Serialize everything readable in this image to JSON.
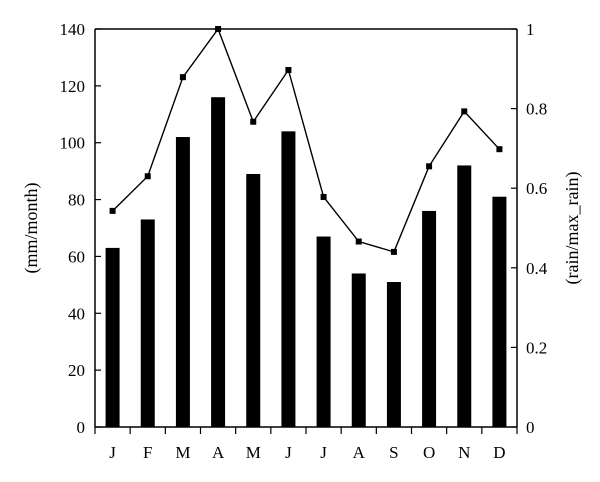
{
  "chart_data": {
    "type": "bar",
    "categories": [
      "J",
      "F",
      "M",
      "A",
      "M",
      "J",
      "J",
      "A",
      "S",
      "O",
      "N",
      "D"
    ],
    "series": [
      {
        "type": "bar",
        "axis": "left",
        "values": [
          63,
          73,
          102,
          116,
          89,
          104,
          67,
          54,
          51,
          76,
          92,
          81
        ]
      },
      {
        "type": "line",
        "axis": "right",
        "marker": "square",
        "values": [
          0.543,
          0.63,
          0.879,
          1.0,
          0.767,
          0.897,
          0.578,
          0.466,
          0.44,
          0.655,
          0.793,
          0.698
        ]
      }
    ],
    "xlabel": "",
    "ylabel": "(mm/month)",
    "y2label": "(rain/max_rain)",
    "ylim": [
      0,
      140
    ],
    "y2lim": [
      0,
      1
    ],
    "yticks": [
      "0",
      "20",
      "40",
      "60",
      "80",
      "100",
      "120",
      "140"
    ],
    "y2ticks": [
      "0",
      "0.2",
      "0.4",
      "0.6",
      "0.8",
      "1"
    ],
    "grid": false,
    "colors": {
      "bars": "#000000",
      "line": "#000000"
    }
  }
}
